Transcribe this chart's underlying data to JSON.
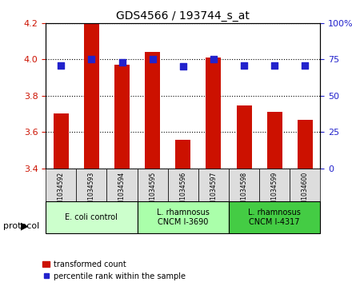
{
  "title": "GDS4566 / 193744_s_at",
  "samples": [
    "GSM1034592",
    "GSM1034593",
    "GSM1034594",
    "GSM1034595",
    "GSM1034596",
    "GSM1034597",
    "GSM1034598",
    "GSM1034599",
    "GSM1034600"
  ],
  "bar_values": [
    3.7,
    4.2,
    3.97,
    4.04,
    3.555,
    4.01,
    3.745,
    3.71,
    3.665
  ],
  "percentile_values": [
    71,
    75,
    73,
    75,
    70,
    75,
    71,
    71,
    71
  ],
  "ylim_left": [
    3.4,
    4.2
  ],
  "ylim_right": [
    0,
    100
  ],
  "yticks_left": [
    3.4,
    3.6,
    3.8,
    4.0,
    4.2
  ],
  "yticks_right": [
    0,
    25,
    50,
    75,
    100
  ],
  "bar_color": "#CC1100",
  "dot_color": "#2222CC",
  "grid_color": "#000000",
  "protocols": [
    {
      "label": "E. coli control",
      "samples": [
        0,
        1,
        2
      ],
      "color": "#ccffcc"
    },
    {
      "label": "L. rhamnosus\nCNCM I-3690",
      "samples": [
        3,
        4,
        5
      ],
      "color": "#aaffaa"
    },
    {
      "label": "L. rhamnosus\nCNCM I-4317",
      "samples": [
        6,
        7,
        8
      ],
      "color": "#44cc44"
    }
  ],
  "protocol_label": "protocol",
  "legend_bar_label": "transformed count",
  "legend_dot_label": "percentile rank within the sample",
  "tick_label_color_left": "#CC1100",
  "tick_label_color_right": "#2222CC",
  "bar_width": 0.5
}
